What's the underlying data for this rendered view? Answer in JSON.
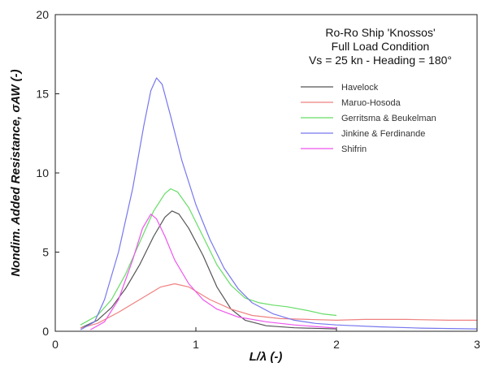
{
  "chart_data": {
    "type": "line",
    "title_lines": [
      "Ro-Ro Ship 'Knossos'",
      "Full Load Condition",
      "Vs =  25 kn - Heading = 180°"
    ],
    "xlabel": "L/λ  (-)",
    "ylabel": "Nondim. Added Resistance, σAW  (-)",
    "xlim": [
      0,
      3
    ],
    "ylim": [
      0,
      20
    ],
    "xticks": [
      0,
      1,
      2,
      3
    ],
    "yticks": [
      0,
      5,
      10,
      15,
      20
    ],
    "grid": false,
    "legend_position": "top-right",
    "series": [
      {
        "name": "Havelock",
        "color": "#555555",
        "points": [
          [
            0.18,
            0.2
          ],
          [
            0.3,
            0.7
          ],
          [
            0.4,
            1.5
          ],
          [
            0.5,
            2.7
          ],
          [
            0.6,
            4.2
          ],
          [
            0.7,
            6.0
          ],
          [
            0.78,
            7.2
          ],
          [
            0.83,
            7.6
          ],
          [
            0.88,
            7.4
          ],
          [
            0.95,
            6.5
          ],
          [
            1.05,
            4.8
          ],
          [
            1.15,
            2.8
          ],
          [
            1.25,
            1.4
          ],
          [
            1.35,
            0.7
          ],
          [
            1.5,
            0.35
          ],
          [
            1.7,
            0.22
          ],
          [
            2.0,
            0.15
          ]
        ]
      },
      {
        "name": "Maruo-Hosoda",
        "color": "#f08080",
        "points": [
          [
            0.18,
            0.2
          ],
          [
            0.3,
            0.5
          ],
          [
            0.45,
            1.2
          ],
          [
            0.6,
            2.0
          ],
          [
            0.75,
            2.8
          ],
          [
            0.85,
            3.0
          ],
          [
            0.95,
            2.8
          ],
          [
            1.1,
            2.0
          ],
          [
            1.25,
            1.4
          ],
          [
            1.4,
            1.0
          ],
          [
            1.6,
            0.8
          ],
          [
            1.8,
            0.75
          ],
          [
            2.0,
            0.7
          ],
          [
            2.2,
            0.75
          ],
          [
            2.5,
            0.75
          ],
          [
            2.8,
            0.7
          ],
          [
            3.0,
            0.7
          ]
        ]
      },
      {
        "name": "Gerritsma & Beukelman",
        "color": "#66dd66",
        "points": [
          [
            0.18,
            0.4
          ],
          [
            0.3,
            1.0
          ],
          [
            0.4,
            2.0
          ],
          [
            0.5,
            3.6
          ],
          [
            0.6,
            5.6
          ],
          [
            0.7,
            7.6
          ],
          [
            0.78,
            8.7
          ],
          [
            0.82,
            9.0
          ],
          [
            0.87,
            8.8
          ],
          [
            0.95,
            7.8
          ],
          [
            1.05,
            6.0
          ],
          [
            1.15,
            4.2
          ],
          [
            1.25,
            2.9
          ],
          [
            1.35,
            2.1
          ],
          [
            1.45,
            1.8
          ],
          [
            1.55,
            1.65
          ],
          [
            1.65,
            1.55
          ],
          [
            1.8,
            1.3
          ],
          [
            1.9,
            1.1
          ],
          [
            2.0,
            1.0
          ]
        ]
      },
      {
        "name": "Jinkine & Ferdinande",
        "color": "#7777ee",
        "points": [
          [
            0.18,
            0.1
          ],
          [
            0.28,
            0.6
          ],
          [
            0.35,
            2.0
          ],
          [
            0.45,
            5.0
          ],
          [
            0.55,
            9.0
          ],
          [
            0.63,
            13.0
          ],
          [
            0.68,
            15.2
          ],
          [
            0.72,
            16.0
          ],
          [
            0.76,
            15.6
          ],
          [
            0.82,
            13.6
          ],
          [
            0.9,
            10.8
          ],
          [
            1.0,
            8.0
          ],
          [
            1.1,
            5.8
          ],
          [
            1.2,
            4.0
          ],
          [
            1.3,
            2.7
          ],
          [
            1.4,
            1.8
          ],
          [
            1.55,
            1.1
          ],
          [
            1.7,
            0.7
          ],
          [
            1.85,
            0.5
          ],
          [
            2.0,
            0.4
          ],
          [
            2.3,
            0.28
          ],
          [
            2.6,
            0.2
          ],
          [
            3.0,
            0.15
          ]
        ]
      },
      {
        "name": "Shifrin",
        "color": "#ee55ee",
        "points": [
          [
            0.25,
            0.1
          ],
          [
            0.35,
            0.6
          ],
          [
            0.45,
            2.0
          ],
          [
            0.55,
            4.5
          ],
          [
            0.62,
            6.5
          ],
          [
            0.68,
            7.4
          ],
          [
            0.72,
            7.1
          ],
          [
            0.78,
            6.0
          ],
          [
            0.85,
            4.5
          ],
          [
            0.95,
            3.0
          ],
          [
            1.05,
            2.0
          ],
          [
            1.15,
            1.4
          ],
          [
            1.3,
            0.9
          ],
          [
            1.5,
            0.6
          ],
          [
            1.7,
            0.4
          ],
          [
            2.0,
            0.2
          ]
        ]
      }
    ]
  }
}
